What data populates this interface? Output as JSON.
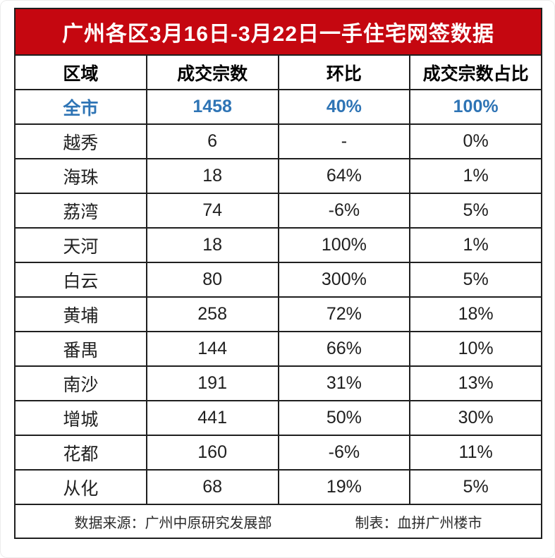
{
  "chart_data": {
    "type": "table",
    "title": "广州各区3月16日-3月22日一手住宅网签数据",
    "columns": [
      "区域",
      "成交宗数",
      "环比",
      "成交宗数占比"
    ],
    "rows": [
      [
        "全市",
        "1458",
        "40%",
        "100%"
      ],
      [
        "越秀",
        "6",
        "-",
        "0%"
      ],
      [
        "海珠",
        "18",
        "64%",
        "1%"
      ],
      [
        "荔湾",
        "74",
        "-6%",
        "5%"
      ],
      [
        "天河",
        "18",
        "100%",
        "1%"
      ],
      [
        "白云",
        "80",
        "300%",
        "5%"
      ],
      [
        "黄埔",
        "258",
        "72%",
        "18%"
      ],
      [
        "番禺",
        "144",
        "66%",
        "10%"
      ],
      [
        "南沙",
        "191",
        "31%",
        "13%"
      ],
      [
        "增城",
        "441",
        "50%",
        "30%"
      ],
      [
        "花都",
        "160",
        "-6%",
        "11%"
      ],
      [
        "从化",
        "68",
        "19%",
        "5%"
      ]
    ],
    "highlight_row": "全市",
    "footer": {
      "source": "数据来源：广州中原研究发展部",
      "maker": "制表：血拼广州楼市"
    }
  },
  "colors": {
    "banner_red": "#c50710",
    "highlight_blue": "#2e74b5",
    "border": "#1f1f1f",
    "text": "#1f1f1f"
  }
}
